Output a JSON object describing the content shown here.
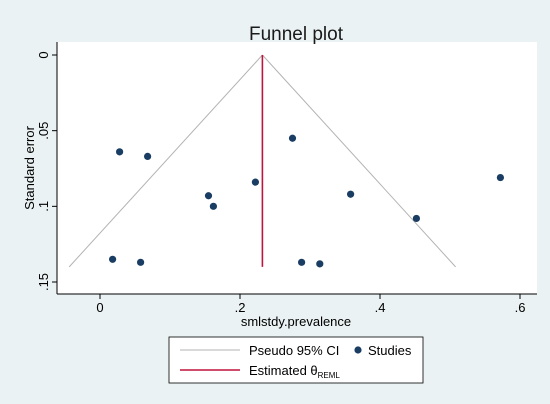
{
  "chart_data": {
    "type": "scatter",
    "title": "Funnel plot",
    "xlabel": "smlstdy.prevalence",
    "ylabel": "Standard error",
    "xlim": [
      -0.045,
      0.6
    ],
    "ylim": [
      0,
      0.15
    ],
    "y_reversed": true,
    "x_ticks": [
      0,
      0.2,
      0.4,
      0.6
    ],
    "x_tick_labels": [
      "0",
      ".2",
      ".4",
      ".6"
    ],
    "y_ticks": [
      0,
      0.05,
      0.1,
      0.15
    ],
    "y_tick_labels": [
      "0",
      ".05",
      ".1",
      ".15"
    ],
    "grid": false,
    "legend_position": "bottom",
    "estimate": 0.232,
    "estimate_se_range": [
      0,
      0.14
    ],
    "funnel": {
      "apex": [
        0.232,
        0
      ],
      "left_base": [
        -0.044,
        0.14
      ],
      "right_base": [
        0.508,
        0.14
      ]
    },
    "series": [
      {
        "name": "Studies",
        "points": [
          {
            "x": 0.028,
            "y": 0.064
          },
          {
            "x": 0.068,
            "y": 0.067
          },
          {
            "x": 0.155,
            "y": 0.093
          },
          {
            "x": 0.162,
            "y": 0.1
          },
          {
            "x": 0.222,
            "y": 0.084
          },
          {
            "x": 0.275,
            "y": 0.055
          },
          {
            "x": 0.358,
            "y": 0.092
          },
          {
            "x": 0.452,
            "y": 0.108
          },
          {
            "x": 0.572,
            "y": 0.081
          },
          {
            "x": 0.018,
            "y": 0.135
          },
          {
            "x": 0.058,
            "y": 0.137
          },
          {
            "x": 0.288,
            "y": 0.137
          },
          {
            "x": 0.314,
            "y": 0.138
          }
        ]
      }
    ],
    "legend": {
      "ci_label": "Pseudo 95% CI",
      "studies_label": "Studies",
      "estimate_label_main": "Estimated θ",
      "estimate_label_sub": "REML"
    }
  },
  "colors": {
    "background": "#eaf2f3",
    "plot_area": "#ffffff",
    "funnel": "#b3b3b3",
    "estimate": "#c0143c",
    "points": "#1a3d63",
    "axis": "#000000"
  }
}
